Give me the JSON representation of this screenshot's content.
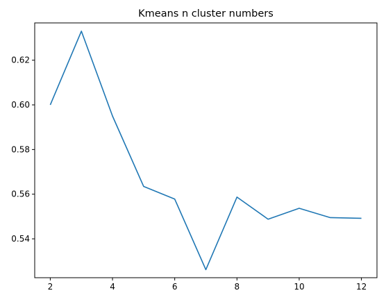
{
  "chart_data": {
    "type": "line",
    "title": "Kmeans n cluster numbers",
    "xlabel": "",
    "ylabel": "",
    "xlim": [
      1.5,
      12.5
    ],
    "ylim": [
      0.5226,
      0.6367
    ],
    "xticks": [
      2,
      4,
      6,
      8,
      10,
      12
    ],
    "yticks": [
      0.54,
      0.56,
      0.58,
      0.6,
      0.62
    ],
    "ytick_labels": [
      "0.54",
      "0.56",
      "0.58",
      "0.60",
      "0.62"
    ],
    "grid": false,
    "series": [
      {
        "color": "#1f77b4",
        "x": [
          2,
          3,
          4,
          5,
          6,
          7,
          8,
          9,
          10,
          11,
          12
        ],
        "y": [
          0.6,
          0.633,
          0.595,
          0.5635,
          0.5578,
          0.5262,
          0.5587,
          0.5488,
          0.5537,
          0.5495,
          0.5492
        ]
      }
    ]
  }
}
